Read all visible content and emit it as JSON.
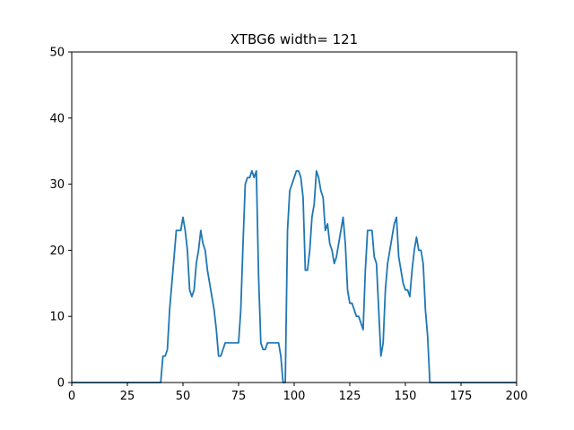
{
  "chart_data": {
    "type": "line",
    "title": "XTBG6 width= 121",
    "xlabel": "",
    "ylabel": "",
    "xlim": [
      0,
      200
    ],
    "ylim": [
      0,
      50
    ],
    "xticks": [
      0,
      25,
      50,
      75,
      100,
      125,
      150,
      175,
      200
    ],
    "yticks": [
      0,
      10,
      20,
      30,
      40,
      50
    ],
    "grid": false,
    "line_color": "#1f77b4",
    "series": [
      {
        "x": [
          0,
          40,
          41,
          42,
          43,
          44,
          45,
          46,
          47,
          48,
          49,
          50,
          51,
          52,
          53,
          54,
          55,
          56,
          57,
          58,
          59,
          60,
          61,
          62,
          63,
          64,
          65,
          66,
          67,
          68,
          69,
          70,
          71,
          72,
          73,
          74,
          75,
          76,
          77,
          78,
          79,
          80,
          81,
          82,
          83,
          84,
          85,
          86,
          87,
          88,
          89,
          90,
          91,
          92,
          93,
          94,
          95,
          96,
          97,
          98,
          99,
          100,
          101,
          102,
          103,
          104,
          105,
          106,
          107,
          108,
          109,
          110,
          111,
          112,
          113,
          114,
          115,
          116,
          117,
          118,
          119,
          120,
          121,
          122,
          123,
          124,
          125,
          126,
          127,
          128,
          129,
          130,
          131,
          132,
          133,
          134,
          135,
          136,
          137,
          138,
          139,
          140,
          141,
          142,
          143,
          144,
          145,
          146,
          147,
          148,
          149,
          150,
          151,
          152,
          153,
          154,
          155,
          156,
          157,
          158,
          159,
          160,
          161,
          200
        ],
        "y": [
          0,
          0,
          4,
          4,
          5,
          11,
          15,
          19,
          23,
          23,
          23,
          25,
          23,
          20,
          14,
          13,
          14,
          18,
          20,
          23,
          21,
          20,
          17,
          15,
          13,
          11,
          8,
          4,
          4,
          5,
          6,
          6,
          6,
          6,
          6,
          6,
          6,
          11,
          21,
          30,
          31,
          31,
          32,
          31,
          32,
          16,
          6,
          5,
          5,
          6,
          6,
          6,
          6,
          6,
          6,
          4,
          0,
          0,
          23,
          29,
          30,
          31,
          32,
          32,
          31,
          28,
          17,
          17,
          20,
          25,
          27,
          32,
          31,
          29,
          28,
          23,
          24,
          21,
          20,
          18,
          19,
          21,
          23,
          25,
          21,
          14,
          12,
          12,
          11,
          10,
          10,
          9,
          8,
          17,
          23,
          23,
          23,
          19,
          18,
          11,
          4,
          6,
          14,
          18,
          20,
          22,
          24,
          25,
          19,
          17,
          15,
          14,
          14,
          13,
          17,
          20,
          22,
          20,
          20,
          18,
          11,
          7,
          0,
          0
        ]
      }
    ]
  }
}
